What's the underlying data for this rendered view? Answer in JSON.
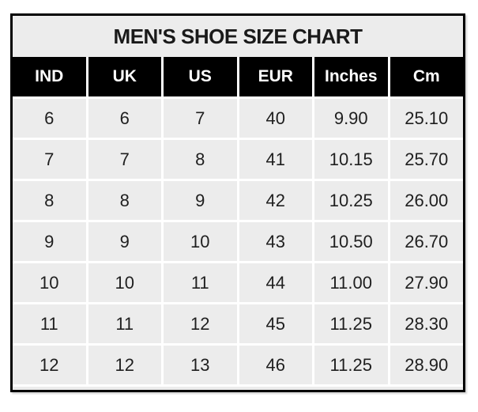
{
  "title": "MEN'S SHOE SIZE CHART",
  "table": {
    "columns": [
      "IND",
      "UK",
      "US",
      "EUR",
      "Inches",
      "Cm"
    ],
    "rows": [
      [
        "6",
        "6",
        "7",
        "40",
        "9.90",
        "25.10"
      ],
      [
        "7",
        "7",
        "8",
        "41",
        "10.15",
        "25.70"
      ],
      [
        "8",
        "8",
        "9",
        "42",
        "10.25",
        "26.00"
      ],
      [
        "9",
        "9",
        "10",
        "43",
        "10.50",
        "26.70"
      ],
      [
        "10",
        "10",
        "11",
        "44",
        "11.00",
        "27.90"
      ],
      [
        "11",
        "11",
        "12",
        "45",
        "11.25",
        "28.30"
      ],
      [
        "12",
        "12",
        "13",
        "46",
        "11.25",
        "28.90"
      ]
    ]
  },
  "chart_data": {
    "type": "table",
    "title": "MEN'S SHOE SIZE CHART",
    "columns": [
      "IND",
      "UK",
      "US",
      "EUR",
      "Inches",
      "Cm"
    ],
    "rows": [
      [
        6,
        6,
        7,
        40,
        9.9,
        25.1
      ],
      [
        7,
        7,
        8,
        41,
        10.15,
        25.7
      ],
      [
        8,
        8,
        9,
        42,
        10.25,
        26.0
      ],
      [
        9,
        9,
        10,
        43,
        10.5,
        26.7
      ],
      [
        10,
        10,
        11,
        44,
        11.0,
        27.9
      ],
      [
        11,
        11,
        12,
        45,
        11.25,
        28.3
      ],
      [
        12,
        12,
        13,
        46,
        11.25,
        28.9
      ]
    ]
  },
  "colors": {
    "header_bg": "#000000",
    "header_text": "#ffffff",
    "cell_bg": "#ececec",
    "grid_line": "#ffffff",
    "cell_text": "#1f1f1f",
    "outer_border": "#000000"
  }
}
